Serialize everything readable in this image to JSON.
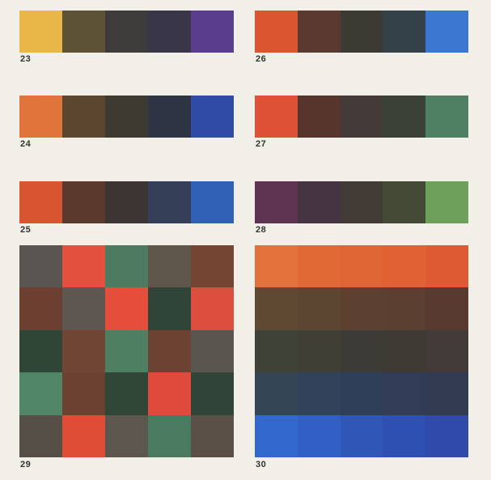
{
  "plates": [
    {
      "id": "23",
      "label": "23",
      "kind": "strip",
      "colors": [
        "#e9b648",
        "#5e5236",
        "#3e3c3a",
        "#39364a",
        "#5b3d8e"
      ]
    },
    {
      "id": "26",
      "label": "26",
      "kind": "strip",
      "colors": [
        "#da5530",
        "#5a3a30",
        "#3b3a33",
        "#334149",
        "#3c77d2"
      ]
    },
    {
      "id": "24",
      "label": "24",
      "kind": "strip",
      "colors": [
        "#e0743a",
        "#5b4630",
        "#3e3a31",
        "#2f3445",
        "#2f4ba6"
      ]
    },
    {
      "id": "27",
      "label": "27",
      "kind": "strip",
      "colors": [
        "#dd5237",
        "#56352d",
        "#433a37",
        "#3a4137",
        "#4e8064"
      ]
    },
    {
      "id": "25",
      "label": "25",
      "kind": "strip",
      "colors": [
        "#d95430",
        "#5a3a2c",
        "#3c3534",
        "#354058",
        "#3161b6"
      ]
    },
    {
      "id": "28",
      "label": "28",
      "kind": "strip",
      "colors": [
        "#5f3452",
        "#453543",
        "#423a34",
        "#454a36",
        "#6ea05b"
      ]
    },
    {
      "id": "29",
      "label": "29",
      "kind": "grid",
      "colors": [
        [
          "#595550",
          "#e3503d",
          "#4e7a62",
          "#5f574a",
          "#744632"
        ],
        [
          "#6d3f31",
          "#5d5651",
          "#e44e3b",
          "#2f4537",
          "#de4e3e"
        ],
        [
          "#2f4536",
          "#6f4533",
          "#4f7f62",
          "#6c4332",
          "#5b5550"
        ],
        [
          "#508567",
          "#6b4131",
          "#304637",
          "#e04a3a",
          "#304537"
        ],
        [
          "#564f47",
          "#e04d37",
          "#5c564e",
          "#4a7b61",
          "#5b5048"
        ]
      ]
    },
    {
      "id": "30",
      "label": "30",
      "kind": "grid",
      "colors": [
        [
          "#e2713b",
          "#e06936",
          "#df6534",
          "#df6134",
          "#dd5a32"
        ],
        [
          "#5e4933",
          "#5c4632",
          "#5d4130",
          "#5b3f31",
          "#593a31"
        ],
        [
          "#3f4236",
          "#3f3f36",
          "#3d3b36",
          "#3e3b35",
          "#413a36"
        ],
        [
          "#344555",
          "#32425a",
          "#2f3e59",
          "#313c56",
          "#333b52"
        ],
        [
          "#3369cf",
          "#325fc6",
          "#3056b8",
          "#2f50b3",
          "#2f4aa9"
        ]
      ]
    }
  ]
}
